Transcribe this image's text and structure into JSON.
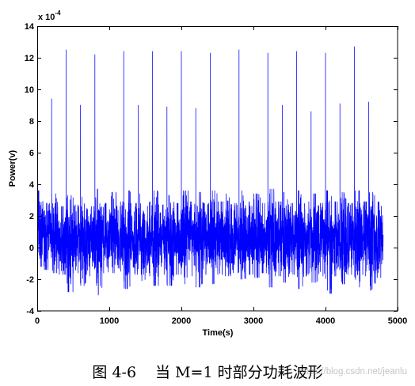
{
  "chart_data": {
    "type": "line",
    "xlabel": "Time(s)",
    "ylabel": "Power(v)",
    "y_exponent": {
      "base": "x 10",
      "power": "-4"
    },
    "xlim": [
      0,
      5000
    ],
    "ylim": [
      -4,
      14
    ],
    "xtick_labels": [
      "0",
      "1000",
      "2000",
      "3000",
      "4000",
      "5000"
    ],
    "ytick_labels": [
      "-4",
      "-2",
      "0",
      "2",
      "4",
      "6",
      "8",
      "10",
      "12",
      "14"
    ],
    "grid": false,
    "series": [
      {
        "color": "#0000ff",
        "x_range": [
          0,
          4800
        ],
        "envelope": {
          "t": [
            0,
            100,
            200,
            300,
            400,
            500,
            600,
            700,
            800,
            900,
            1000,
            1100,
            1200,
            1300,
            1400,
            1500,
            1600,
            1700,
            1800,
            1900,
            2000,
            2100,
            2200,
            2300,
            2400,
            2500,
            2600,
            2700,
            2800,
            2900,
            3000,
            3100,
            3200,
            3300,
            3400,
            3500,
            3600,
            3700,
            3800,
            3900,
            4000,
            4100,
            4200,
            4300,
            4400,
            4500,
            4600,
            4700
          ],
          "min": [
            -1.2,
            -1.4,
            -1.6,
            -1.7,
            -2.8,
            -1.6,
            -2.4,
            -1.8,
            -3.0,
            -1.6,
            -1.6,
            -1.5,
            -2.6,
            -1.7,
            -2.1,
            -1.8,
            -2.4,
            -1.7,
            -2.4,
            -1.7,
            -2.3,
            -1.8,
            -2.5,
            -1.7,
            -2.3,
            -1.7,
            -1.8,
            -1.6,
            -2.0,
            -1.7,
            -1.9,
            -1.6,
            -2.5,
            -1.8,
            -2.2,
            -1.7,
            -2.6,
            -1.8,
            -2.2,
            -1.8,
            -2.9,
            -1.8,
            -2.3,
            -1.7,
            -2.5,
            -1.8,
            -2.7,
            -1.9
          ],
          "max": [
            3.6,
            2.8,
            3.4,
            2.6,
            3.3,
            2.7,
            3.2,
            2.6,
            3.7,
            2.8,
            3.5,
            2.9,
            3.6,
            2.8,
            3.4,
            2.9,
            3.6,
            2.7,
            3.3,
            2.8,
            3.6,
            2.9,
            3.5,
            2.8,
            3.6,
            2.9,
            3.4,
            2.8,
            3.6,
            2.9,
            3.4,
            2.8,
            3.7,
            2.9,
            3.5,
            2.8,
            3.6,
            2.9,
            3.4,
            2.8,
            3.6,
            2.9,
            3.5,
            2.8,
            3.6,
            2.9,
            3.5,
            2.9
          ]
        },
        "peaks": [
          {
            "x": 200,
            "y": 9.4
          },
          {
            "x": 400,
            "y": 12.5
          },
          {
            "x": 600,
            "y": 9.0
          },
          {
            "x": 800,
            "y": 12.2
          },
          {
            "x": 1200,
            "y": 12.4
          },
          {
            "x": 1400,
            "y": 9.0
          },
          {
            "x": 1600,
            "y": 12.4
          },
          {
            "x": 1800,
            "y": 8.9
          },
          {
            "x": 2000,
            "y": 12.4
          },
          {
            "x": 2200,
            "y": 8.8
          },
          {
            "x": 2400,
            "y": 12.3
          },
          {
            "x": 2800,
            "y": 12.5
          },
          {
            "x": 3200,
            "y": 12.3
          },
          {
            "x": 3400,
            "y": 9.0
          },
          {
            "x": 3600,
            "y": 12.4
          },
          {
            "x": 3800,
            "y": 8.6
          },
          {
            "x": 4000,
            "y": 12.3
          },
          {
            "x": 4200,
            "y": 9.1
          },
          {
            "x": 4400,
            "y": 12.7
          },
          {
            "x": 4600,
            "y": 9.2
          }
        ]
      }
    ]
  },
  "caption": {
    "number": "图 4-6",
    "text": "当 M=1 时部分功耗波形"
  },
  "watermark": "https://blog.csdn.net/jeanlu"
}
